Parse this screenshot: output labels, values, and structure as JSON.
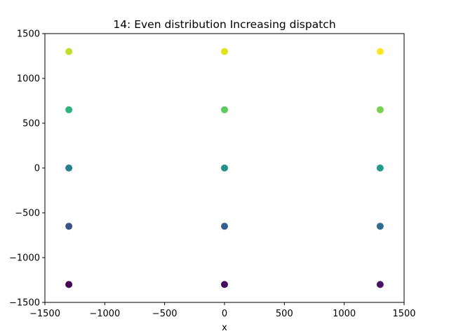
{
  "chart_data": {
    "type": "scatter",
    "title": "14: Even distribution Increasing dispatch",
    "xlabel": "x",
    "ylabel": "",
    "xlim": [
      -1500,
      1500
    ],
    "ylim": [
      -1500,
      1500
    ],
    "xticks": [
      -1500,
      -1000,
      -500,
      0,
      500,
      1000,
      1500
    ],
    "yticks": [
      -1500,
      -1000,
      -500,
      0,
      500,
      1000,
      1500
    ],
    "xtick_labels": [
      "−1500",
      "−1000",
      "−500",
      "0",
      "500",
      "1000",
      "1500"
    ],
    "ytick_labels": [
      "−1500",
      "−1000",
      "−500",
      "0",
      "500",
      "1000",
      "1500"
    ],
    "grid": false,
    "colormap": "viridis",
    "points": [
      {
        "x": -1300,
        "y": -1300,
        "color": "#440154"
      },
      {
        "x": 0,
        "y": -1300,
        "color": "#46085c"
      },
      {
        "x": 1300,
        "y": -1300,
        "color": "#471365"
      },
      {
        "x": -1300,
        "y": -650,
        "color": "#3b528b"
      },
      {
        "x": 0,
        "y": -650,
        "color": "#355f8d"
      },
      {
        "x": 1300,
        "y": -650,
        "color": "#2e6e8e"
      },
      {
        "x": -1300,
        "y": 0,
        "color": "#27808e"
      },
      {
        "x": 0,
        "y": 0,
        "color": "#21918c"
      },
      {
        "x": 1300,
        "y": 0,
        "color": "#1f9e89"
      },
      {
        "x": -1300,
        "y": 650,
        "color": "#2fb47c"
      },
      {
        "x": 0,
        "y": 650,
        "color": "#5ec962"
      },
      {
        "x": 1300,
        "y": 650,
        "color": "#7ad151"
      },
      {
        "x": -1300,
        "y": 1300,
        "color": "#bddf26"
      },
      {
        "x": 0,
        "y": 1300,
        "color": "#dde318"
      },
      {
        "x": 1300,
        "y": 1300,
        "color": "#fde725"
      }
    ]
  }
}
